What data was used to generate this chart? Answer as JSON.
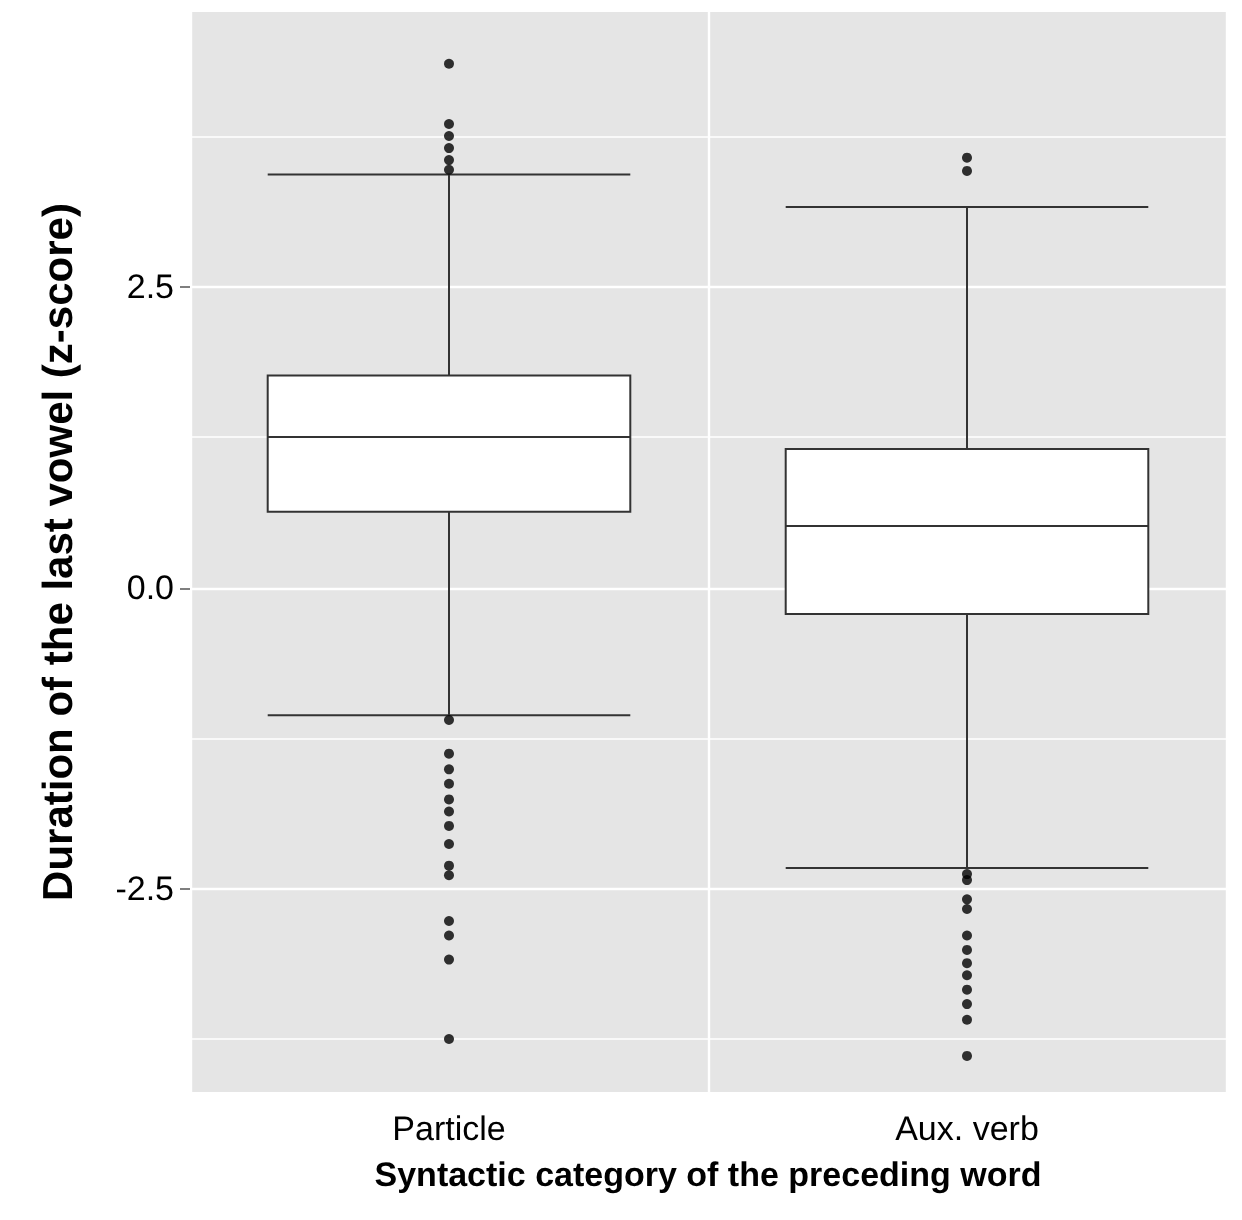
{
  "chart_data": {
    "type": "box",
    "xlabel": "Syntactic category of the preceding word",
    "ylabel": "Duration of the last vowel (z-score)",
    "categories": [
      "Particle",
      "Aux. verb"
    ],
    "boxes": [
      {
        "low": -1.06,
        "q1": 0.63,
        "median": 1.25,
        "q3": 1.76,
        "high": 3.43,
        "outliers": [
          4.35,
          3.85,
          3.75,
          3.65,
          3.55,
          3.47,
          -1.1,
          -1.38,
          -1.51,
          -1.63,
          -1.76,
          -1.86,
          -1.98,
          -2.13,
          -2.31,
          -2.39,
          -2.77,
          -2.89,
          -3.09,
          -3.75
        ]
      },
      {
        "low": -2.33,
        "q1": -0.22,
        "median": 0.51,
        "q3": 1.15,
        "high": 3.16,
        "outliers": [
          3.57,
          3.46,
          -2.38,
          -2.43,
          -2.59,
          -2.67,
          -2.89,
          -3.01,
          -3.12,
          -3.22,
          -3.34,
          -3.46,
          -3.59,
          -3.89
        ]
      }
    ],
    "ylim": [
      -4.19,
      4.78
    ],
    "yticks": [
      {
        "value": -3.75,
        "label": null
      },
      {
        "value": -2.5,
        "label": "-2.5"
      },
      {
        "value": -1.25,
        "label": null
      },
      {
        "value": 0,
        "label": "0.0"
      },
      {
        "value": 1.25,
        "label": null
      },
      {
        "value": 2.5,
        "label": "2.5"
      },
      {
        "value": 3.75,
        "label": null
      }
    ],
    "grid": true
  }
}
